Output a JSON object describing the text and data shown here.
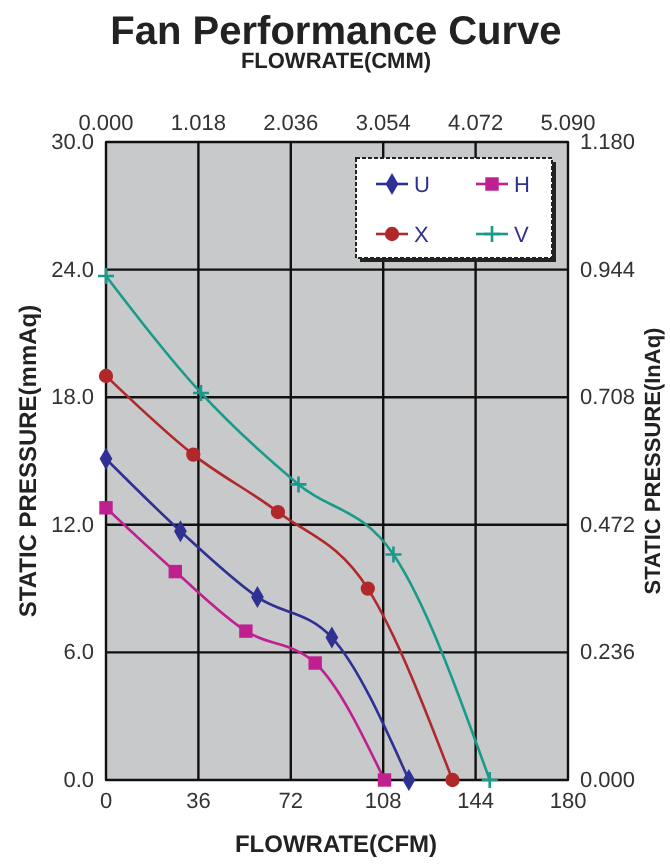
{
  "chart_data": {
    "type": "line",
    "title": "Fan Performance Curve",
    "x2label": "FLOWRATE(CMM)",
    "xlabel": "FLOWRATE(CFM)",
    "ylabel": "STATIC PRESSURE(mmAq)",
    "y2label": "STATIC PRESSURE(InAq)",
    "xlim": [
      0,
      180
    ],
    "xticks": [
      0,
      36,
      72,
      108,
      144,
      180
    ],
    "ylim": [
      0,
      30
    ],
    "yticks": [
      {
        "value": 0,
        "label": "0.0"
      },
      {
        "value": 6,
        "label": "6.0"
      },
      {
        "value": 12,
        "label": "12.0"
      },
      {
        "value": 18,
        "label": "18.0"
      },
      {
        "value": 24,
        "label": "24.0"
      },
      {
        "value": 30,
        "label": "30.0"
      }
    ],
    "x2lim": [
      0,
      5.09
    ],
    "x2ticks": [
      {
        "value": 0,
        "label": "0.000"
      },
      {
        "value": 1.018,
        "label": "1.018"
      },
      {
        "value": 2.036,
        "label": "2.036"
      },
      {
        "value": 3.054,
        "label": "3.054"
      },
      {
        "value": 4.072,
        "label": "4.072"
      },
      {
        "value": 5.09,
        "label": "5.090"
      }
    ],
    "y2lim": [
      0,
      1.18
    ],
    "y2ticks": [
      {
        "value": 0,
        "label": "0.000"
      },
      {
        "value": 0.236,
        "label": "0.236"
      },
      {
        "value": 0.472,
        "label": "0.472"
      },
      {
        "value": 0.708,
        "label": "0.708"
      },
      {
        "value": 0.944,
        "label": "0.944"
      },
      {
        "value": 1.18,
        "label": "1.180"
      }
    ],
    "grid": true,
    "legend": "top right",
    "line_style": "solid",
    "series": [
      {
        "name": "U",
        "color": "#2e3192",
        "marker": "diamond",
        "x": [
          0,
          29,
          59,
          88,
          118
        ],
        "values": [
          15.1,
          11.7,
          8.6,
          6.7,
          0
        ]
      },
      {
        "name": "H",
        "color": "#c0208f",
        "marker": "square",
        "x": [
          0,
          27,
          54.5,
          81.5,
          108.5
        ],
        "values": [
          12.8,
          9.8,
          7.0,
          5.5,
          0
        ]
      },
      {
        "name": "X",
        "color": "#b0282a",
        "marker": "circle",
        "x": [
          0,
          34,
          67,
          102,
          135
        ],
        "values": [
          19.0,
          15.3,
          12.6,
          9.0,
          0
        ]
      },
      {
        "name": "V",
        "color": "#1a9a8a",
        "marker": "cross",
        "x": [
          0,
          37,
          75,
          112,
          149.5
        ],
        "values": [
          23.7,
          18.2,
          13.9,
          10.6,
          0
        ]
      }
    ]
  }
}
